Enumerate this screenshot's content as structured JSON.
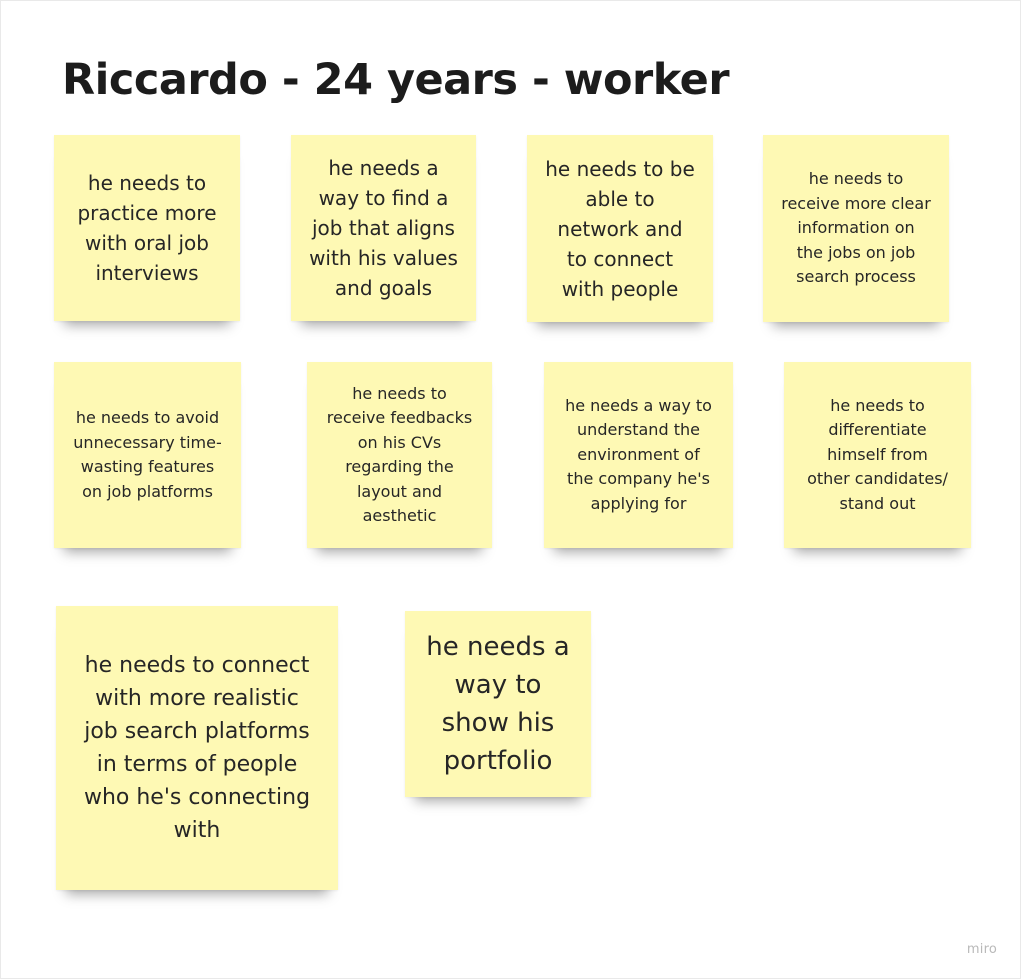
{
  "board": {
    "title": "Riccardo - 24 years - worker"
  },
  "sticky_notes": [
    {
      "text": "he needs to\npractice more\nwith oral job\ninterviews"
    },
    {
      "text": "he needs a\nway to find a\njob that aligns\nwith his values\nand goals"
    },
    {
      "text": "he needs to be\nable to\nnetwork and\nto connect\nwith people"
    },
    {
      "text": "he needs to\nreceive more clear\ninformation on\nthe jobs on job\nsearch process"
    },
    {
      "text": "he needs to avoid\nunnecessary time-\nwasting features\non job platforms"
    },
    {
      "text": "he needs to\nreceive  feedbacks\non his CVs\nregarding the\nlayout and\naesthetic"
    },
    {
      "text": "he needs a way to\nunderstand the\nenvironment of\nthe company he's\napplying for"
    },
    {
      "text": "he needs to\ndifferentiate\nhimself from\nother candidates/\nstand out"
    },
    {
      "text": "he needs to connect\nwith more realistic\njob search platforms\nin terms of people\nwho he's connecting\nwith"
    },
    {
      "text": "he needs a\nway to\nshow his\nportfolio"
    }
  ],
  "colors": {
    "sticky_yellow": "#fef9b4",
    "title_text": "#1c1c1c"
  },
  "watermark": "miro"
}
